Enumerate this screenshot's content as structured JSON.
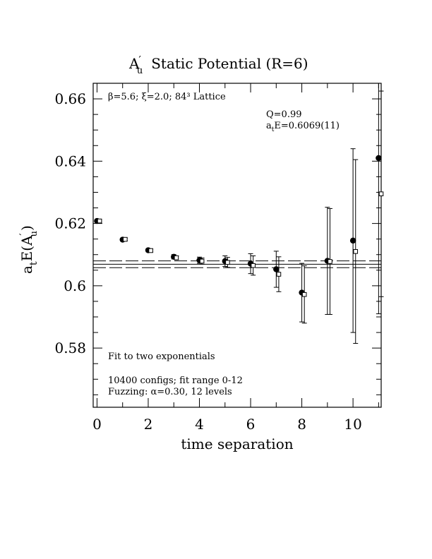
{
  "chart_data": {
    "type": "scatter",
    "title_main": "A",
    "title_prime": "′",
    "title_sub": "u",
    "title_rest": "Static Potential (R=6)",
    "xlabel": "time separation",
    "ylabel_a": "a",
    "ylabel_t": "t",
    "ylabel_E": "E(A",
    "ylabel_prime": "′",
    "ylabel_u": "u",
    "ylabel_close": ")",
    "xlim": [
      -0.15,
      11.1
    ],
    "ylim": [
      0.561,
      0.665
    ],
    "x_ticks": [
      0,
      2,
      4,
      6,
      8,
      10
    ],
    "x_tick_labels": [
      "0",
      "2",
      "4",
      "6",
      "8",
      "10"
    ],
    "y_ticks": [
      0.58,
      0.6,
      0.62,
      0.64,
      0.66
    ],
    "y_tick_labels": [
      "0.58",
      "0.6",
      "0.62",
      "0.64",
      "0.66"
    ],
    "lattice_label": "β=5.6; ξ=2.0; 84³ Lattice",
    "q_label": "Q=0.99",
    "energy_label_a": "a",
    "energy_label_t": "t",
    "energy_label_rest": "E=0.6069(11)",
    "notes": [
      "Fit to two exponentials",
      "10400 configs; fit range 0-12",
      "Fuzzing: α=0.30, 12 levels"
    ],
    "fit": {
      "value": 0.6069,
      "error": 0.0011
    },
    "series": [
      {
        "marker": "filled-circle",
        "x": [
          0,
          1,
          2,
          3,
          4,
          5,
          6,
          7,
          8,
          9,
          10,
          11
        ],
        "y": [
          0.6208,
          0.6148,
          0.6114,
          0.6093,
          0.6082,
          0.6079,
          0.6071,
          0.6053,
          0.5978,
          0.608,
          0.6145,
          0.641
        ],
        "err": [
          0.0003,
          0.0004,
          0.0005,
          0.0007,
          0.001,
          0.0017,
          0.0032,
          0.0058,
          0.0094,
          0.0172,
          0.0295,
          0.05
        ]
      },
      {
        "marker": "open-square",
        "x": [
          0.1,
          1.1,
          2.1,
          3.1,
          4.1,
          5.1,
          6.1,
          7.1,
          8.1,
          9.1,
          10.1,
          11.1
        ],
        "y": [
          0.6208,
          0.6149,
          0.6113,
          0.609,
          0.6079,
          0.6075,
          0.6065,
          0.6037,
          0.5972,
          0.6078,
          0.611,
          0.6295
        ],
        "err": [
          0.0003,
          0.0004,
          0.0005,
          0.0006,
          0.001,
          0.0016,
          0.0031,
          0.0056,
          0.0092,
          0.017,
          0.0295,
          0.033
        ]
      }
    ]
  }
}
